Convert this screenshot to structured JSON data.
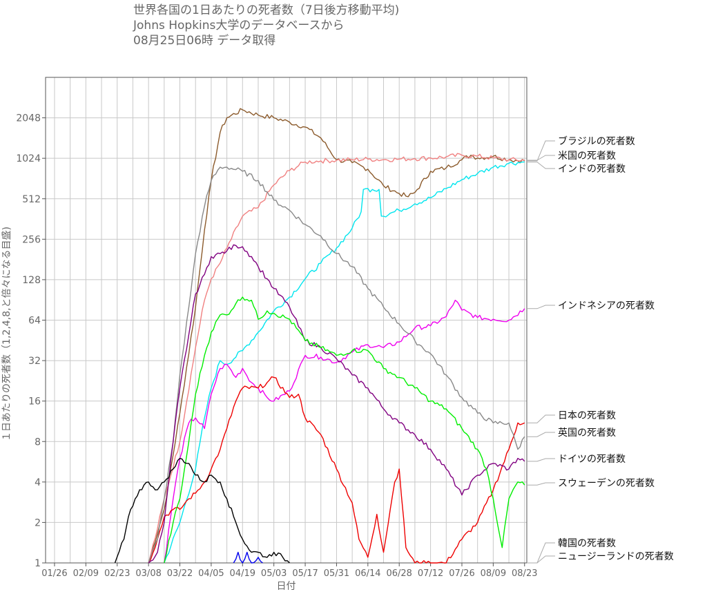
{
  "chart_data": {
    "type": "line",
    "title_lines": [
      "世界各国の1日あたりの死者数（7日後方移動平均)",
      "",
      "Johns Hopkins大学のデータベースから",
      "08月25日06時 データ取得"
    ],
    "xlabel": "日付",
    "ylabel": "１日あたりの死者数（1,2,4,8,と倍々になる目盛)",
    "y_scale": "log2",
    "ylim": [
      1,
      4096
    ],
    "y_ticks": [
      1,
      2,
      4,
      8,
      16,
      32,
      64,
      128,
      256,
      512,
      1024,
      2048
    ],
    "y_tick_labels": [
      "1",
      "2",
      "4",
      "8",
      "16",
      "32",
      "64",
      "128",
      "256",
      "512",
      "1024",
      "2048"
    ],
    "xlim": [
      "01/22",
      "08/24"
    ],
    "x_ticks": [
      "01/26",
      "02/09",
      "02/23",
      "03/08",
      "03/22",
      "04/05",
      "04/19",
      "05/03",
      "05/17",
      "05/31",
      "06/14",
      "06/28",
      "07/12",
      "07/26",
      "08/09",
      "08/23"
    ],
    "grid": true,
    "legend_placement": "right, labels at series end",
    "series": [
      {
        "name": "ブラジルの死者数",
        "color": "#8B5A2B",
        "points": [
          [
            "03/08",
            1
          ],
          [
            "03/15",
            2.5
          ],
          [
            "03/22",
            13
          ],
          [
            "03/29",
            80
          ],
          [
            "04/02",
            300
          ],
          [
            "04/05",
            700
          ],
          [
            "04/09",
            1600
          ],
          [
            "04/12",
            2050
          ],
          [
            "04/19",
            2350
          ],
          [
            "04/26",
            2150
          ],
          [
            "05/03",
            2050
          ],
          [
            "05/10",
            1900
          ],
          [
            "05/17",
            1750
          ],
          [
            "05/24",
            1450
          ],
          [
            "05/31",
            1000
          ],
          [
            "06/07",
            950
          ],
          [
            "06/14",
            850
          ],
          [
            "06/21",
            640
          ],
          [
            "06/28",
            560
          ],
          [
            "07/02",
            530
          ],
          [
            "07/05",
            570
          ],
          [
            "07/12",
            820
          ],
          [
            "07/19",
            870
          ],
          [
            "07/26",
            1000
          ],
          [
            "07/30",
            1080
          ],
          [
            "08/02",
            1030
          ],
          [
            "08/09",
            1060
          ],
          [
            "08/16",
            1000
          ],
          [
            "08/23",
            980
          ]
        ]
      },
      {
        "name": "米国の死者数",
        "color": "#F08080",
        "points": [
          [
            "03/08",
            1
          ],
          [
            "03/12",
            1.8
          ],
          [
            "03/15",
            3
          ],
          [
            "03/22",
            8
          ],
          [
            "03/29",
            40
          ],
          [
            "04/02",
            90
          ],
          [
            "04/05",
            130
          ],
          [
            "04/09",
            170
          ],
          [
            "04/12",
            220
          ],
          [
            "04/19",
            380
          ],
          [
            "04/26",
            440
          ],
          [
            "05/03",
            650
          ],
          [
            "05/10",
            830
          ],
          [
            "05/17",
            960
          ],
          [
            "05/24",
            980
          ],
          [
            "05/31",
            990
          ],
          [
            "06/07",
            1000
          ],
          [
            "06/14",
            1010
          ],
          [
            "06/21",
            1000
          ],
          [
            "06/28",
            1010
          ],
          [
            "07/05",
            1020
          ],
          [
            "07/12",
            1030
          ],
          [
            "07/19",
            1050
          ],
          [
            "07/26",
            1080
          ],
          [
            "08/02",
            1060
          ],
          [
            "08/09",
            1030
          ],
          [
            "08/16",
            1000
          ],
          [
            "08/23",
            990
          ]
        ]
      },
      {
        "name": "インドの死者数",
        "color": "#00E5EE",
        "points": [
          [
            "03/15",
            1
          ],
          [
            "03/22",
            2
          ],
          [
            "03/29",
            5
          ],
          [
            "04/02",
            12
          ],
          [
            "04/05",
            20
          ],
          [
            "04/09",
            32
          ],
          [
            "04/12",
            30
          ],
          [
            "04/19",
            38
          ],
          [
            "04/26",
            52
          ],
          [
            "05/03",
            75
          ],
          [
            "05/10",
            95
          ],
          [
            "05/17",
            130
          ],
          [
            "05/24",
            170
          ],
          [
            "05/31",
            220
          ],
          [
            "06/07",
            310
          ],
          [
            "06/11",
            410
          ],
          [
            "06/12",
            600
          ],
          [
            "06/16",
            600
          ],
          [
            "06/19",
            600
          ],
          [
            "06/20",
            380
          ],
          [
            "06/28",
            420
          ],
          [
            "07/05",
            470
          ],
          [
            "07/12",
            520
          ],
          [
            "07/19",
            610
          ],
          [
            "07/26",
            710
          ],
          [
            "08/02",
            790
          ],
          [
            "08/09",
            880
          ],
          [
            "08/16",
            940
          ],
          [
            "08/23",
            960
          ]
        ]
      },
      {
        "name": "インドネシアの死者数",
        "color": "#EE00EE",
        "points": [
          [
            "03/15",
            1
          ],
          [
            "03/19",
            3
          ],
          [
            "03/22",
            6
          ],
          [
            "03/26",
            11
          ],
          [
            "03/29",
            12
          ],
          [
            "04/02",
            10
          ],
          [
            "04/05",
            18
          ],
          [
            "04/09",
            28
          ],
          [
            "04/12",
            30
          ],
          [
            "04/16",
            24
          ],
          [
            "04/19",
            28
          ],
          [
            "04/23",
            22
          ],
          [
            "04/26",
            20
          ],
          [
            "04/30",
            17
          ],
          [
            "05/03",
            16
          ],
          [
            "05/10",
            19
          ],
          [
            "05/17",
            35
          ],
          [
            "05/24",
            34
          ],
          [
            "05/31",
            31
          ],
          [
            "06/07",
            37
          ],
          [
            "06/14",
            42
          ],
          [
            "06/21",
            40
          ],
          [
            "06/28",
            44
          ],
          [
            "07/05",
            56
          ],
          [
            "07/12",
            58
          ],
          [
            "07/19",
            68
          ],
          [
            "07/23",
            90
          ],
          [
            "07/26",
            76
          ],
          [
            "08/02",
            67
          ],
          [
            "08/09",
            65
          ],
          [
            "08/16",
            64
          ],
          [
            "08/23",
            78
          ]
        ]
      },
      {
        "name": "日本の死者数",
        "color": "#EE0000",
        "points": [
          [
            "03/08",
            1
          ],
          [
            "03/12",
            1.5
          ],
          [
            "03/15",
            2.2
          ],
          [
            "03/19",
            2.5
          ],
          [
            "03/22",
            2.5
          ],
          [
            "03/26",
            3
          ],
          [
            "03/29",
            3.3
          ],
          [
            "04/02",
            4
          ],
          [
            "04/05",
            5
          ],
          [
            "04/09",
            7
          ],
          [
            "04/12",
            10
          ],
          [
            "04/16",
            16
          ],
          [
            "04/19",
            20
          ],
          [
            "04/26",
            20
          ],
          [
            "04/30",
            22
          ],
          [
            "05/03",
            24
          ],
          [
            "05/10",
            17
          ],
          [
            "05/14",
            18
          ],
          [
            "05/17",
            12
          ],
          [
            "05/24",
            9
          ],
          [
            "05/31",
            5
          ],
          [
            "06/07",
            2.8
          ],
          [
            "06/10",
            1.5
          ],
          [
            "06/14",
            1.1
          ],
          [
            "06/18",
            2.3
          ],
          [
            "06/21",
            1.2
          ],
          [
            "06/24",
            2.5
          ],
          [
            "06/26",
            4
          ],
          [
            "06/28",
            5
          ],
          [
            "07/01",
            1.3
          ],
          [
            "07/05",
            1
          ],
          [
            "07/12",
            1
          ],
          [
            "07/19",
            1
          ],
          [
            "07/26",
            1.5
          ],
          [
            "08/02",
            2
          ],
          [
            "08/09",
            3.5
          ],
          [
            "08/16",
            7
          ],
          [
            "08/20",
            11
          ],
          [
            "08/23",
            11
          ]
        ]
      },
      {
        "name": "英国の死者数",
        "color": "#888888",
        "points": [
          [
            "03/08",
            1
          ],
          [
            "03/12",
            1.5
          ],
          [
            "03/15",
            3
          ],
          [
            "03/19",
            8
          ],
          [
            "03/22",
            25
          ],
          [
            "03/26",
            80
          ],
          [
            "03/29",
            200
          ],
          [
            "04/02",
            450
          ],
          [
            "04/05",
            700
          ],
          [
            "04/09",
            880
          ],
          [
            "04/12",
            880
          ],
          [
            "04/19",
            820
          ],
          [
            "04/26",
            700
          ],
          [
            "05/03",
            500
          ],
          [
            "05/10",
            420
          ],
          [
            "05/17",
            330
          ],
          [
            "05/24",
            270
          ],
          [
            "05/31",
            200
          ],
          [
            "06/07",
            160
          ],
          [
            "06/14",
            110
          ],
          [
            "06/21",
            80
          ],
          [
            "06/28",
            60
          ],
          [
            "07/05",
            45
          ],
          [
            "07/12",
            36
          ],
          [
            "07/19",
            25
          ],
          [
            "07/26",
            17
          ],
          [
            "08/02",
            13
          ],
          [
            "08/09",
            11
          ],
          [
            "08/16",
            11
          ],
          [
            "08/20",
            7
          ],
          [
            "08/23",
            8.7
          ]
        ]
      },
      {
        "name": "ドイツの死者数",
        "color": "#800080",
        "points": [
          [
            "03/08",
            1
          ],
          [
            "03/12",
            1.2
          ],
          [
            "03/15",
            2
          ],
          [
            "03/19",
            8
          ],
          [
            "03/22",
            20
          ],
          [
            "03/26",
            50
          ],
          [
            "03/29",
            100
          ],
          [
            "04/02",
            140
          ],
          [
            "04/05",
            190
          ],
          [
            "04/09",
            200
          ],
          [
            "04/12",
            210
          ],
          [
            "04/16",
            230
          ],
          [
            "04/19",
            225
          ],
          [
            "04/23",
            190
          ],
          [
            "04/26",
            160
          ],
          [
            "04/30",
            130
          ],
          [
            "05/03",
            110
          ],
          [
            "05/10",
            80
          ],
          [
            "05/17",
            45
          ],
          [
            "05/24",
            40
          ],
          [
            "05/31",
            33
          ],
          [
            "06/07",
            25
          ],
          [
            "06/14",
            20
          ],
          [
            "06/21",
            14
          ],
          [
            "06/28",
            11
          ],
          [
            "07/05",
            9
          ],
          [
            "07/12",
            7
          ],
          [
            "07/19",
            5
          ],
          [
            "07/26",
            3.2
          ],
          [
            "08/02",
            4.5
          ],
          [
            "08/09",
            5.5
          ],
          [
            "08/16",
            5
          ],
          [
            "08/20",
            6
          ],
          [
            "08/23",
            5.7
          ]
        ]
      },
      {
        "name": "スウェーデンの死者数",
        "color": "#00EE00",
        "points": [
          [
            "03/15",
            1
          ],
          [
            "03/19",
            2
          ],
          [
            "03/22",
            3
          ],
          [
            "03/26",
            8
          ],
          [
            "03/29",
            18
          ],
          [
            "04/02",
            35
          ],
          [
            "04/05",
            52
          ],
          [
            "04/09",
            70
          ],
          [
            "04/12",
            70
          ],
          [
            "04/16",
            85
          ],
          [
            "04/19",
            95
          ],
          [
            "04/23",
            90
          ],
          [
            "04/26",
            65
          ],
          [
            "04/30",
            75
          ],
          [
            "05/03",
            72
          ],
          [
            "05/10",
            65
          ],
          [
            "05/17",
            45
          ],
          [
            "05/24",
            40
          ],
          [
            "05/31",
            35
          ],
          [
            "06/07",
            38
          ],
          [
            "06/14",
            38
          ],
          [
            "06/21",
            28
          ],
          [
            "06/28",
            24
          ],
          [
            "07/05",
            20
          ],
          [
            "07/12",
            16
          ],
          [
            "07/19",
            14
          ],
          [
            "07/26",
            10
          ],
          [
            "08/02",
            7
          ],
          [
            "08/06",
            5
          ],
          [
            "08/09",
            3
          ],
          [
            "08/13",
            1.3
          ],
          [
            "08/16",
            3
          ],
          [
            "08/20",
            4
          ],
          [
            "08/23",
            3.8
          ]
        ]
      },
      {
        "name": "韓国の死者数",
        "color": "#000000",
        "points": [
          [
            "02/22",
            1
          ],
          [
            "02/26",
            1.5
          ],
          [
            "02/29",
            2.5
          ],
          [
            "03/04",
            3.5
          ],
          [
            "03/08",
            4
          ],
          [
            "03/12",
            3.5
          ],
          [
            "03/15",
            4
          ],
          [
            "03/19",
            5
          ],
          [
            "03/22",
            6
          ],
          [
            "03/26",
            5.5
          ],
          [
            "03/29",
            4.5
          ],
          [
            "04/02",
            4
          ],
          [
            "04/05",
            4.5
          ],
          [
            "04/09",
            4
          ],
          [
            "04/12",
            3
          ],
          [
            "04/16",
            2
          ],
          [
            "04/19",
            1.5
          ],
          [
            "04/23",
            1.2
          ],
          [
            "04/26",
            1.2
          ],
          [
            "04/30",
            1.1
          ],
          [
            "05/03",
            1.2
          ],
          [
            "05/07",
            1.1
          ],
          [
            "05/10",
            1
          ]
        ]
      },
      {
        "name": "ニュージーランドの死者数",
        "color": "#0000EE",
        "points": [
          [
            "04/15",
            1
          ],
          [
            "04/17",
            1.2
          ],
          [
            "04/19",
            1
          ],
          [
            "04/21",
            1.2
          ],
          [
            "04/23",
            1
          ],
          [
            "04/26",
            1.1
          ],
          [
            "04/28",
            1
          ]
        ]
      }
    ]
  }
}
